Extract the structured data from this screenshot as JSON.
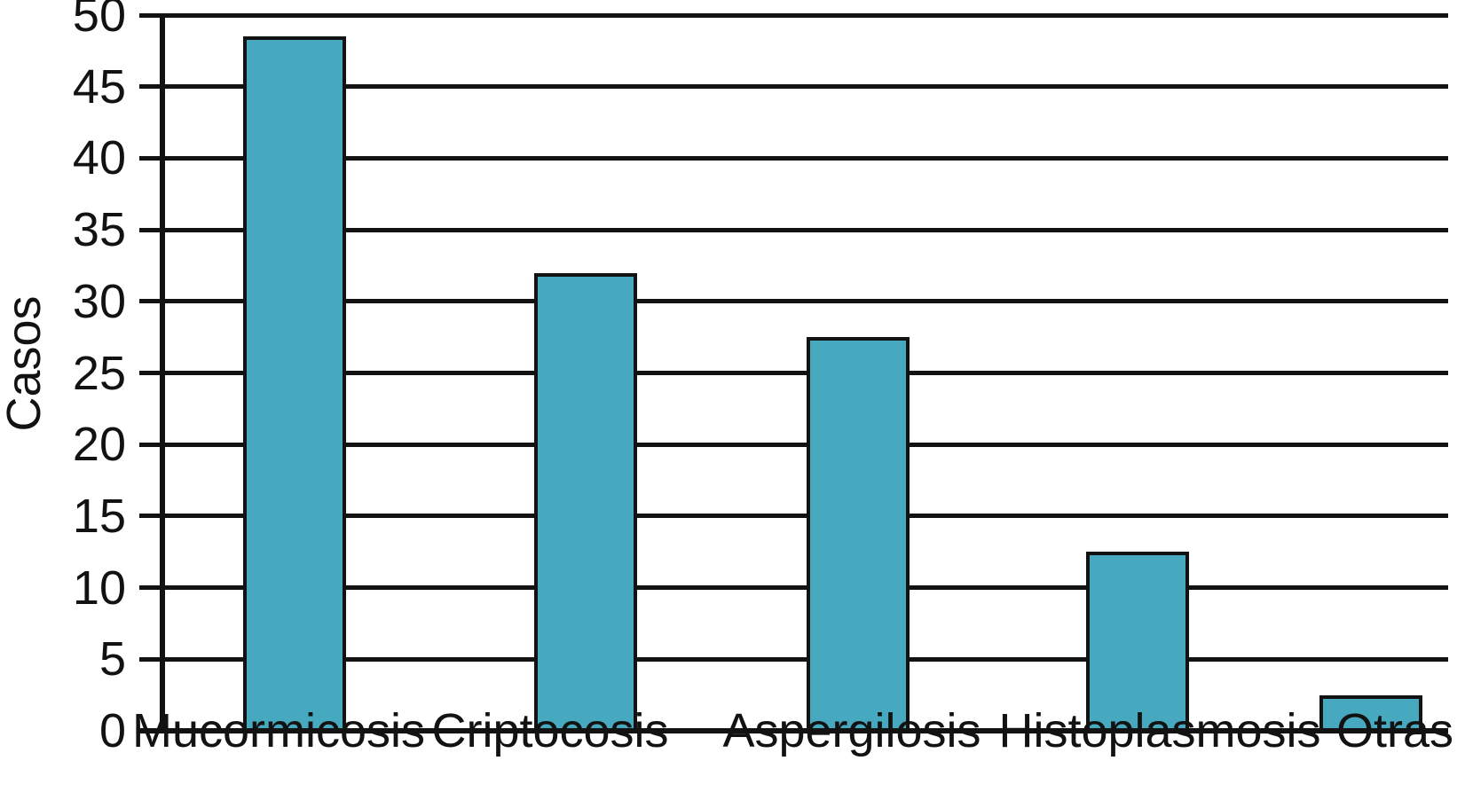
{
  "chart": {
    "y_axis_title": "Casos",
    "y_tick_labels": [
      "0",
      "5",
      "10",
      "15",
      "20",
      "25",
      "30",
      "35",
      "40",
      "45",
      "50"
    ]
  },
  "chart_data": {
    "type": "bar",
    "title": "",
    "categories": [
      "Mucormicosis",
      "Criptocosis",
      "Aspergilosis",
      "Histoplasmosis",
      "Otras"
    ],
    "values": [
      48.5,
      32,
      27.5,
      12.5,
      2.5
    ],
    "xlabel": "",
    "ylabel": "Casos",
    "ylim": [
      0,
      50
    ],
    "ytick_interval": 5,
    "grid": "horizontal-black-lines",
    "legend": "none",
    "bar_fill_color": "#47A9BF",
    "bar_border_color": "#121212",
    "axis_color": "#121212",
    "text_color": "#121212",
    "background_color": "#FFFFFF"
  }
}
